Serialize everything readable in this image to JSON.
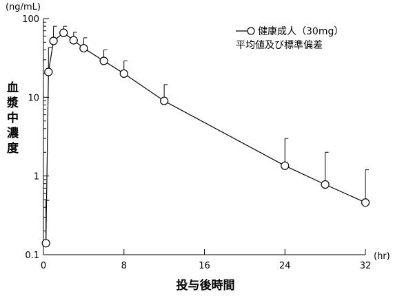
{
  "chart_data": {
    "type": "line",
    "y_scale": "log",
    "y_unit": "(ng/mL)",
    "x_unit": "(hr)",
    "xlabel": "投与後時間",
    "ylabel": "血漿中濃度",
    "xlim": [
      0,
      32
    ],
    "ylim": [
      0.1,
      100
    ],
    "x_ticks": [
      0,
      8,
      16,
      24,
      32
    ],
    "y_ticks": [
      0.1,
      1,
      10,
      100
    ],
    "x_tick_labels": [
      "0",
      "8",
      "16",
      "24",
      "32"
    ],
    "y_tick_labels": [
      "0.1",
      "1",
      "10",
      "100"
    ],
    "legend": {
      "placement": "top-right",
      "series_label": "健康成人（30mg）",
      "stat_label": "平均値及び標準偏差"
    },
    "series": [
      {
        "name": "健康成人（30mg）",
        "x": [
          0.25,
          0.5,
          1,
          2,
          3,
          4,
          6,
          8,
          12,
          24,
          28,
          32
        ],
        "y": [
          0.14,
          21,
          52,
          66,
          53,
          42,
          29,
          20,
          9,
          1.35,
          0.78,
          0.46
        ],
        "error_upper": [
          0.49,
          43,
          80,
          80,
          67,
          57,
          40,
          29,
          14.5,
          3.0,
          2.0,
          1.2
        ]
      }
    ]
  }
}
